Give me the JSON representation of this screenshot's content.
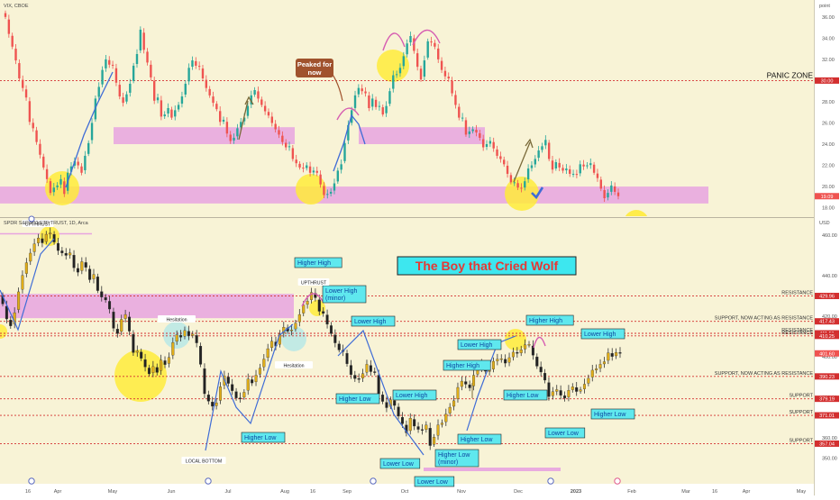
{
  "colors": {
    "background": "#f8f3d6",
    "axis_bg": "#ffffff",
    "up": "#26a69a",
    "down": "#ef5350",
    "gold": "#e0ad18",
    "pink_zone": "#e7a3e0",
    "red_line": "#d32f2f",
    "label_cyan": "#5fe8ee",
    "label_text": "#0d47a1",
    "yellow_circle": "#ffeb3b",
    "title_box": "#3de7ef",
    "title_text": "#e53935",
    "peaked_box": "#a0522d",
    "blue_line": "#3f6cd6"
  },
  "icons": [
    "checkmark-icon",
    "dividends-icon",
    "earnings-icon"
  ],
  "chart_data": [
    {
      "type": "candlestick",
      "symbol_label": "VIX, CBOE",
      "unit_label": "point",
      "ylim": [
        17.2,
        37.6
      ],
      "y_ticks": [
        18.0,
        20.0,
        22.0,
        24.0,
        26.0,
        28.0,
        30.0,
        32.0,
        34.0,
        36.0
      ],
      "last_value_badge": "19.09",
      "last_value": 19.09,
      "levels": [
        {
          "value": 30.0,
          "label": "PANIC ZONE",
          "badge": "30.00"
        }
      ],
      "zones": [
        [
          18.4,
          20.0
        ],
        [
          24.0,
          25.6
        ]
      ],
      "annotations": [
        "Peaked for now"
      ],
      "closes": [
        36.0,
        34.4,
        33.2,
        31.9,
        30.2,
        29.3,
        28.4,
        26.1,
        25.5,
        24.2,
        23.0,
        21.8,
        20.7,
        19.4,
        19.9,
        20.1,
        20.7,
        19.3,
        21.3,
        21.9,
        22.4,
        22.0,
        21.3,
        22.9,
        24.1,
        26.0,
        28.3,
        29.4,
        31.0,
        32.0,
        31.5,
        31.4,
        29.8,
        28.5,
        27.9,
        28.7,
        29.7,
        31.4,
        32.5,
        34.8,
        32.9,
        31.7,
        30.3,
        28.1,
        28.4,
        26.6,
        26.8,
        27.4,
        26.5,
        27.2,
        27.7,
        28.5,
        29.7,
        31.2,
        31.9,
        31.4,
        31.3,
        30.2,
        29.3,
        28.6,
        27.9,
        27.3,
        26.1,
        26.3,
        25.0,
        24.3,
        24.6,
        25.5,
        26.1,
        26.5,
        27.6,
        28.6,
        29.1,
        28.3,
        27.7,
        27.1,
        26.7,
        26.0,
        25.4,
        24.9,
        24.2,
        23.7,
        23.8,
        22.6,
        22.2,
        21.8,
        21.7,
        22.0,
        21.3,
        21.5,
        21.3,
        20.2,
        19.2,
        19.3,
        19.5,
        20.3,
        21.5,
        22.1,
        24.1,
        25.8,
        27.2,
        28.6,
        29.3,
        29.0,
        28.8,
        27.4,
        28.3,
        27.5,
        27.6,
        26.8,
        27.6,
        29.0,
        30.5,
        30.6,
        31.2,
        32.3,
        33.5,
        34.2,
        32.8,
        31.3,
        30.1,
        31.9,
        33.7,
        33.6,
        33.2,
        32.0,
        31.0,
        30.4,
        30.2,
        28.8,
        27.7,
        26.5,
        26.5,
        24.9,
        25.2,
        25.4,
        25.1,
        24.6,
        23.7,
        24.0,
        24.3,
        23.6,
        22.9,
        22.6,
        22.1,
        21.2,
        20.4,
        20.4,
        19.9,
        19.8,
        20.5,
        21.7,
        22.0,
        22.6,
        23.4,
        23.8,
        24.4,
        22.6,
        21.6,
        22.3,
        21.8,
        21.5,
        21.7,
        21.2,
        21.2,
        21.1,
        22.1,
        21.9,
        22.0,
        22.2,
        21.3,
        20.8,
        19.8,
        18.9,
        19.4,
        20.1,
        19.5,
        19.09
      ]
    },
    {
      "type": "candlestick",
      "symbol_label": "SPDR S&P 500 ETF TRUST, 1D, Arca",
      "unit_label": "USD",
      "ylim": [
        343,
        468
      ],
      "y_ticks": [
        350.0,
        360.0,
        380.0,
        400.0,
        420.0,
        440.0,
        460.0
      ],
      "last_value_badge": "401.60",
      "last_value": 401.6,
      "levels": [
        {
          "value": 429.96,
          "label": "RESISTANCE",
          "badge": "429.96"
        },
        {
          "value": 417.43,
          "label": "SUPPORT, NOW ACTING AS RESISTANCE",
          "badge": "417.43"
        },
        {
          "value": 411.51,
          "label": "RESISTANCE",
          "badge": "411.51"
        },
        {
          "value": 410.25,
          "label": "RESISTANCE",
          "badge": "410.25"
        },
        {
          "value": 390.23,
          "label": "SUPPORT, NOW ACTING AS RESISTANCE",
          "badge": "390.23"
        },
        {
          "value": 379.19,
          "label": "SUPPORT",
          "badge": "379.19"
        },
        {
          "value": 371.01,
          "label": "SUPPORT",
          "badge": "371.01"
        },
        {
          "value": 357.04,
          "label": "SUPPORT",
          "badge": "357.04"
        }
      ],
      "zones": [
        [
          419,
          431
        ]
      ],
      "title_box": "The Boy that Cried Wolf",
      "annotations": [
        "UPTHRUST",
        "Hesitation",
        "Hesitation",
        "LOCAL BOTTOM",
        "UPTHRUST"
      ],
      "labels": [
        "Higher High",
        "Lower High (minor)",
        "Lower High",
        "Higher Low",
        "Lower High",
        "Lower Low",
        "Higher Low (minor)",
        "Lower Low",
        "Lower High",
        "Higher High",
        "Higher Low",
        "Higher Low",
        "Higher High",
        "Lower High",
        "Higher Low",
        "Lower Low",
        "Higher Low"
      ],
      "closes": [
        426.0,
        418.6,
        415.2,
        421.7,
        432.0,
        440.1,
        446.4,
        451.1,
        455.7,
        458.6,
        456.2,
        460.4,
        461.0,
        456.6,
        452.4,
        451.2,
        450.0,
        451.2,
        443.9,
        441.7,
        446.9,
        444.1,
        438.0,
        440.6,
        432.6,
        429.4,
        428.0,
        423.5,
        414.0,
        411.4,
        418.4,
        420.8,
        412.6,
        402.0,
        402.8,
        399.2,
        394.9,
        391.5,
        395.1,
        392.2,
        398.3,
        396.1,
        399.6,
        407.0,
        410.7,
        409.6,
        412.9,
        410.3,
        411.1,
        406.8,
        396.2,
        381.7,
        378.0,
        375.5,
        377.2,
        385.1,
        390.5,
        386.8,
        383.2,
        379.6,
        379.5,
        382.4,
        388.9,
        387.0,
        390.8,
        394.3,
        398.8,
        403.9,
        407.6,
        405.2,
        411.2,
        414.5,
        412.6,
        413.2,
        416.5,
        420.8,
        425.5,
        427.4,
        431.7,
        429.1,
        422.4,
        421.4,
        416.0,
        411.4,
        406.8,
        403.3,
        402.5,
        396.5,
        391.1,
        389.2,
        389.0,
        391.6,
        396.2,
        392.6,
        392.4,
        381.7,
        377.9,
        374.8,
        378.7,
        375.9,
        370.6,
        366.9,
        362.4,
        369.6,
        365.7,
        364.1,
        363.6,
        366.2,
        356.1,
        360.2,
        366.3,
        367.2,
        371.6,
        375.0,
        378.2,
        384.8,
        387.9,
        386.4,
        384.6,
        390.8,
        394.3,
        396.1,
        392.8,
        393.1,
        397.7,
        398.7,
        399.0,
        396.8,
        399.5,
        402.2,
        401.6,
        403.4,
        405.8,
        406.1,
        400.7,
        395.3,
        392.4,
        388.4,
        380.3,
        382.7,
        383.7,
        380.9,
        379.5,
        383.4,
        385.1,
        382.8,
        383.6,
        386.4,
        389.3,
        393.3,
        394.0,
        396.2,
        397.5,
        401.9,
        400.1,
        402.1,
        401.6
      ]
    }
  ],
  "x_axis": {
    "labels": [
      "16",
      "Apr",
      "May",
      "Jun",
      "Jul",
      "Aug",
      "16",
      "Sep",
      "Oct",
      "Nov",
      "Dec",
      "2023",
      "Feb",
      "Mar",
      "16",
      "Apr",
      "May"
    ]
  }
}
